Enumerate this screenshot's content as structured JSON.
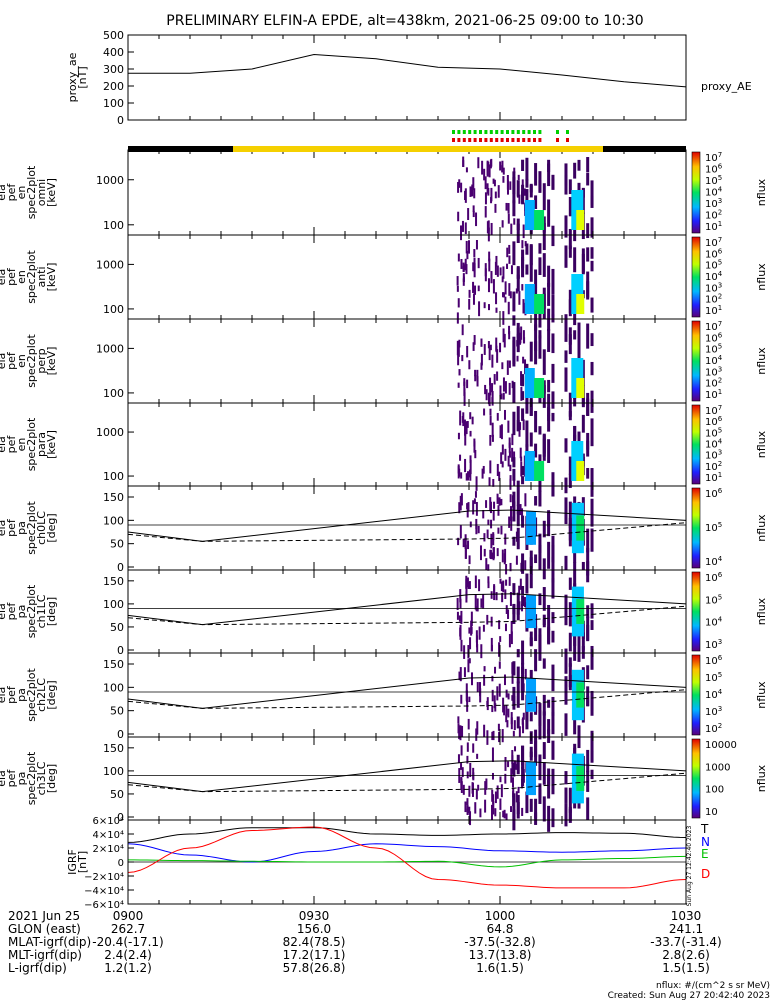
{
  "title": "PRELIMINARY ELFIN-A EPDE, alt=438km, 2021-06-25 09:00 to 10:30",
  "chart_data": {
    "type": "multi-panel",
    "x_range": [
      "2021-06-25 09:00",
      "2021-06-25 10:30"
    ],
    "panels": [
      {
        "id": "ae",
        "type": "line",
        "ylabel": [
          "proxy_ae",
          "[nT]"
        ],
        "series_label": "proxy_AE",
        "ylim": [
          0,
          500
        ],
        "yticks": [
          "500",
          "400",
          "300",
          "200",
          "100",
          "0"
        ],
        "x_min": [
          0,
          10,
          20,
          30,
          40,
          50,
          60,
          70,
          80,
          90
        ],
        "values": [
          275,
          275,
          300,
          385,
          360,
          310,
          300,
          265,
          225,
          195
        ]
      },
      {
        "id": "omni",
        "type": "heatmap",
        "ylabel": [
          "ela",
          "pef",
          "en",
          "spec2plot",
          "omni",
          "[keV]"
        ],
        "yticks": [
          "1000",
          "100"
        ],
        "cbar_ticks": [
          "10^7",
          "10^6",
          "10^5",
          "10^4",
          "10^3",
          "10^2",
          "10^1"
        ],
        "cbar_label": "nflux"
      },
      {
        "id": "anti",
        "type": "heatmap",
        "ylabel": [
          "ela",
          "pef",
          "en",
          "spec2plot",
          "anti",
          "[keV]"
        ],
        "yticks": [
          "1000",
          "100"
        ],
        "cbar_ticks": [
          "10^7",
          "10^6",
          "10^5",
          "10^4",
          "10^3",
          "10^2",
          "10^1"
        ],
        "cbar_label": "nflux"
      },
      {
        "id": "perp",
        "type": "heatmap",
        "ylabel": [
          "ela",
          "pef",
          "en",
          "spec2plot",
          "perp",
          "[keV]"
        ],
        "yticks": [
          "1000",
          "100"
        ],
        "cbar_ticks": [
          "10^7",
          "10^6",
          "10^5",
          "10^4",
          "10^3",
          "10^2",
          "10^1"
        ],
        "cbar_label": "nflux"
      },
      {
        "id": "para",
        "type": "heatmap",
        "ylabel": [
          "ela",
          "pef",
          "en",
          "spec2plot",
          "para",
          "[keV]"
        ],
        "yticks": [
          "1000",
          "100"
        ],
        "cbar_ticks": [
          "10^7",
          "10^6",
          "10^5",
          "10^4",
          "10^3",
          "10^2",
          "10^1"
        ],
        "cbar_label": "nflux"
      },
      {
        "id": "ch0",
        "type": "heatmap",
        "ylabel": [
          "ela",
          "pef",
          "pa",
          "spec2plot",
          "ch0LC",
          "[deg]"
        ],
        "yticks": [
          "150",
          "100",
          "50",
          "0"
        ],
        "cbar_ticks": [
          "10^6",
          "10^5",
          "10^4"
        ],
        "cbar_label": "nflux"
      },
      {
        "id": "ch1",
        "type": "heatmap",
        "ylabel": [
          "ela",
          "pef",
          "pa",
          "spec2plot",
          "ch1LC",
          "[deg]"
        ],
        "yticks": [
          "150",
          "100",
          "50",
          "0"
        ],
        "cbar_ticks": [
          "10^6",
          "10^5",
          "10^4",
          "10^3"
        ],
        "cbar_label": "nflux"
      },
      {
        "id": "ch2",
        "type": "heatmap",
        "ylabel": [
          "ela",
          "pef",
          "pa",
          "spec2plot",
          "ch2LC",
          "[deg]"
        ],
        "yticks": [
          "150",
          "100",
          "50",
          "0"
        ],
        "cbar_ticks": [
          "10^6",
          "10^5",
          "10^4",
          "10^3",
          "10^2"
        ],
        "cbar_label": "nflux"
      },
      {
        "id": "ch3",
        "type": "heatmap",
        "ylabel": [
          "ela",
          "pef",
          "pa",
          "spec2plot",
          "ch3LC",
          "[deg]"
        ],
        "yticks": [
          "150",
          "100",
          "50",
          "0"
        ],
        "cbar_ticks": [
          "10000",
          "1000",
          "100",
          "10"
        ],
        "cbar_label": "nflux"
      },
      {
        "id": "igrf",
        "type": "line",
        "ylabel": [
          "IGRF",
          "[nT]"
        ],
        "ylim": [
          -60000,
          60000
        ],
        "yticks": [
          "6×10⁴",
          "4×10⁴",
          "2×10⁴",
          "0",
          "−2×10⁴",
          "−4×10⁴",
          "−6×10⁴"
        ],
        "x_min": [
          0,
          10,
          20,
          30,
          40,
          50,
          60,
          70,
          80,
          90
        ],
        "series": [
          {
            "name": "T",
            "color": "#000000",
            "values": [
              28000,
              40000,
              49000,
              49000,
              40000,
              38000,
              40000,
              42000,
              41000,
              35000
            ]
          },
          {
            "name": "N",
            "color": "#0000ff",
            "values": [
              26000,
              10000,
              0,
              15000,
              26000,
              22000,
              16000,
              14000,
              16000,
              20000
            ]
          },
          {
            "name": "E",
            "color": "#00c000",
            "values": [
              3000,
              2000,
              1000,
              0,
              0,
              1000,
              -7000,
              3000,
              5000,
              8000
            ]
          },
          {
            "name": "D",
            "color": "#ff0000",
            "values": [
              -15000,
              20000,
              45000,
              50000,
              20000,
              -25000,
              -33000,
              -37000,
              -37000,
              -25000
            ]
          }
        ]
      }
    ]
  },
  "xaxis": {
    "rows": [
      {
        "label": "2021 Jun 25",
        "values": [
          "0900",
          "0930",
          "1000",
          "1030"
        ]
      },
      {
        "label": "GLON (east)",
        "values": [
          "262.7",
          "156.0",
          "64.8",
          "241.1"
        ]
      },
      {
        "label": "MLAT-igrf(dip)",
        "values": [
          "-20.4(-17.1)",
          "82.4(78.5)",
          "-37.5(-32.8)",
          "-33.7(-31.4)"
        ]
      },
      {
        "label": "MLT-igrf(dip)",
        "values": [
          "2.4(2.4)",
          "17.2(17.1)",
          "13.7(13.8)",
          "2.8(2.6)"
        ]
      },
      {
        "label": "L-igrf(dip)",
        "values": [
          "1.2(1.2)",
          "57.8(26.8)",
          "1.6(1.5)",
          "1.5(1.5)"
        ]
      }
    ]
  },
  "footer": {
    "units": "nflux: #/(cm^2 s sr MeV)",
    "created": "Created: Sun Aug 27 20:42:40 2023",
    "side_stamp": "Sun Aug 27 12:42:40 2023"
  }
}
